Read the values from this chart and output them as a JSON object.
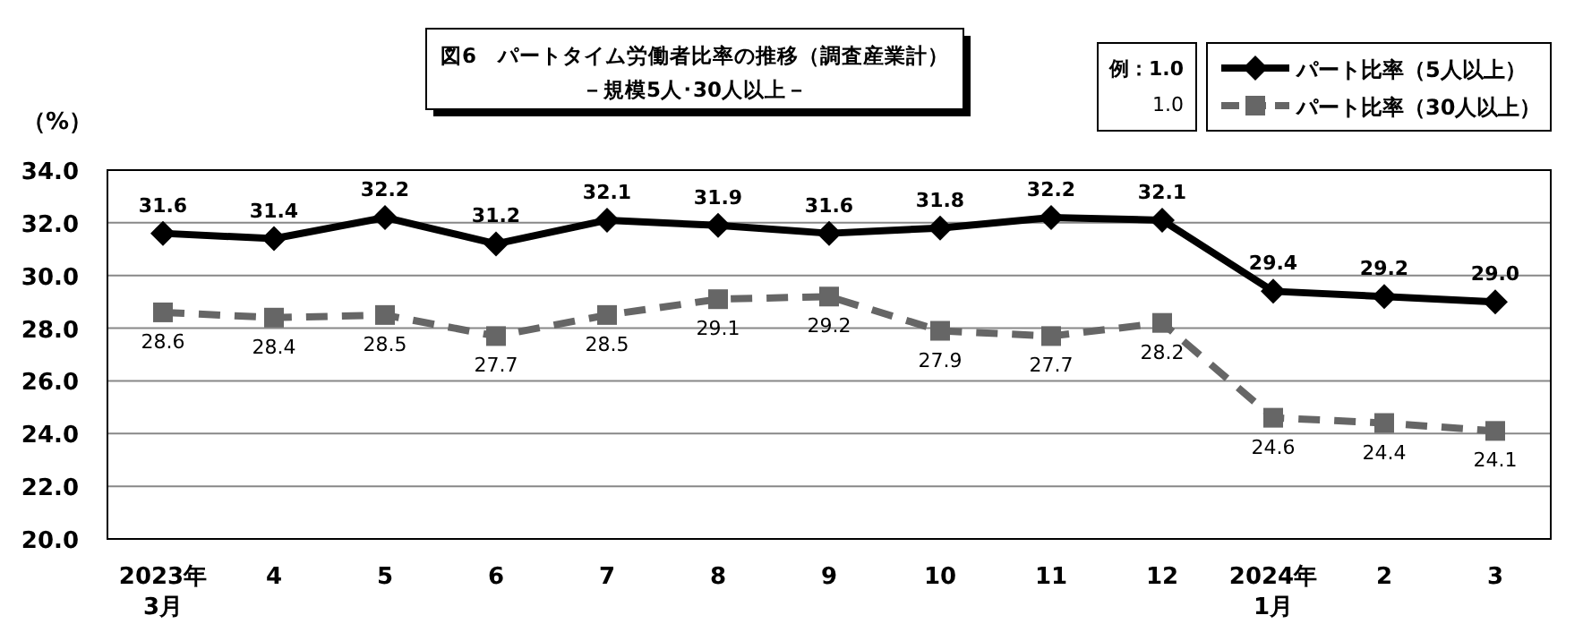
{
  "chart_data": {
    "type": "line",
    "title": "図6　パートタイム労働者比率の推移（調査産業計）",
    "subtitle": "－規模5人･30人以上－",
    "ylabel": "（%）",
    "annotations": [
      "例：1.0",
      "1.0"
    ],
    "categories": [
      "2023年\n3月",
      "4",
      "5",
      "6",
      "7",
      "8",
      "9",
      "10",
      "11",
      "12",
      "2024年\n1月",
      "2",
      "3"
    ],
    "series": [
      {
        "name": "パート比率（5人以上）",
        "color": "#000000",
        "marker": "diamond",
        "line_style": "solid",
        "values": [
          31.6,
          31.4,
          32.2,
          31.2,
          32.1,
          31.9,
          31.6,
          31.8,
          32.2,
          32.1,
          29.4,
          29.2,
          29.0
        ],
        "value_labels": [
          "31.6",
          "31.4",
          "32.2",
          "31.2",
          "32.1",
          "31.9",
          "31.6",
          "31.8",
          "32.2",
          "32.1",
          "29.4",
          "29.2",
          "29.0"
        ]
      },
      {
        "name": "パート比率（30人以上）",
        "color": "#666666",
        "marker": "square",
        "line_style": "dashed",
        "values": [
          28.6,
          28.4,
          28.5,
          27.7,
          28.5,
          29.1,
          29.2,
          27.9,
          27.7,
          28.2,
          24.6,
          24.4,
          24.1
        ],
        "value_labels": [
          "28.6",
          "28.4",
          "28.5",
          "27.7",
          "28.5",
          "29.1",
          "29.2",
          "27.9",
          "27.7",
          "28.2",
          "24.6",
          "24.4",
          "24.1"
        ]
      }
    ],
    "ylim": [
      20,
      34
    ],
    "yticks": [
      {
        "value": 20,
        "label": "20.0"
      },
      {
        "value": 22,
        "label": "22.0"
      },
      {
        "value": 24,
        "label": "24.0"
      },
      {
        "value": 26,
        "label": "26.0"
      },
      {
        "value": 28,
        "label": "28.0"
      },
      {
        "value": 30,
        "label": "30.0"
      },
      {
        "value": 32,
        "label": "32.0"
      },
      {
        "value": 34,
        "label": "34.0"
      }
    ],
    "grid": "y",
    "legend": "top right"
  }
}
